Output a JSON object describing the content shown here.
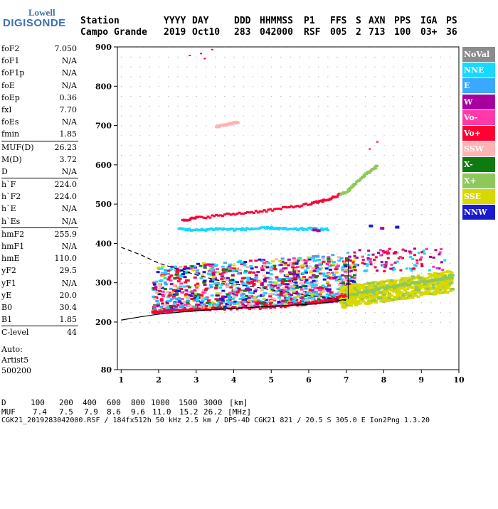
{
  "logo": {
    "line1": "Lowell",
    "line2": "DIGISONDE"
  },
  "header": {
    "row1": [
      "Station",
      "YYYY",
      "DAY",
      "DDD",
      "HHMMSS",
      "P1",
      "FFS",
      "S",
      "AXN",
      "PPS",
      "IGA",
      "PS"
    ],
    "row2": [
      "Campo Grande",
      "2019",
      "Oct10",
      "283",
      "042000",
      "RSF",
      "005",
      "2",
      "713",
      "100",
      "03+",
      "36"
    ]
  },
  "params": [
    [
      [
        "foF2",
        "7.050"
      ],
      [
        "foF1",
        "N/A"
      ],
      [
        "foF1p",
        "N/A"
      ],
      [
        "foE",
        "N/A"
      ],
      [
        "foEp",
        "0.36"
      ],
      [
        "fxI",
        "7.70"
      ],
      [
        "foEs",
        "N/A"
      ],
      [
        "fmin",
        "1.85"
      ]
    ],
    [
      [
        "MUF(D)",
        "26.23"
      ],
      [
        "M(D)",
        "3.72"
      ],
      [
        "D",
        "N/A"
      ]
    ],
    [
      [
        "h`F",
        "224.0"
      ],
      [
        "h`F2",
        "224.0"
      ],
      [
        "h`E",
        "N/A"
      ],
      [
        "h`Es",
        "N/A"
      ]
    ],
    [
      [
        "hmF2",
        "255.9"
      ],
      [
        "hmF1",
        "N/A"
      ],
      [
        "hmE",
        "110.0"
      ],
      [
        "yF2",
        "29.5"
      ],
      [
        "yF1",
        "N/A"
      ],
      [
        "yE",
        "20.0"
      ],
      [
        "B0",
        "30.4"
      ],
      [
        "B1",
        "1.85"
      ]
    ],
    [
      [
        "C-level",
        "44"
      ]
    ]
  ],
  "auto": {
    "line1": "Auto:",
    "line2": "Artist5",
    "line3": "500200"
  },
  "legend": [
    {
      "label": "NoVal",
      "color": "#8c8c8c"
    },
    {
      "label": "NNE",
      "color": "#17d8ff"
    },
    {
      "label": "E",
      "color": "#3aa8ff"
    },
    {
      "label": "W",
      "color": "#a8009e"
    },
    {
      "label": "Vo-",
      "color": "#ff3aa8"
    },
    {
      "label": "Vo+",
      "color": "#ff0033"
    },
    {
      "label": "SSW",
      "color": "#ffb3b3"
    },
    {
      "label": "X-",
      "color": "#0f7a0f"
    },
    {
      "label": "X+",
      "color": "#8fc85a"
    },
    {
      "label": "SSE",
      "color": "#d8d800"
    },
    {
      "label": "NNW",
      "color": "#1a1acc"
    }
  ],
  "bottom": {
    "d_label": "D",
    "d_values": [
      "100",
      "200",
      "400",
      "600",
      "800",
      "1000",
      "1500",
      "3000",
      "[km]"
    ],
    "muf_label": "MUF",
    "muf_values": [
      "7.4",
      "7.5",
      "7.9",
      "8.6",
      "9.6",
      "11.0",
      "15.2",
      "26.2",
      "[MHz]"
    ],
    "footer": "CGK21_2019283042000.RSF / 184fx512h 50 kHz 2.5 km / DPS-4D CGK21 821 / 20.5 S 305.0 E Ion2Png 1.3.20"
  },
  "chart_data": {
    "type": "scatter",
    "x_ticks": [
      "1",
      "2",
      "3",
      "4",
      "5",
      "6",
      "7",
      "8",
      "9",
      "10"
    ],
    "y_ticks": [
      "80",
      "200",
      "300",
      "400",
      "500",
      "600",
      "700",
      "800",
      "900"
    ],
    "xlim": [
      0.9,
      10.0
    ],
    "ylim": [
      80,
      900
    ],
    "grid": true,
    "legend_position": "right",
    "traces": [
      {
        "name": "F2 O-trace (Vo+)",
        "x": [
          1.8,
          2.5,
          3.0,
          4.0,
          5.0,
          6.0,
          6.5,
          7.0
        ],
        "y": [
          228,
          232,
          235,
          238,
          240,
          250,
          258,
          272
        ]
      },
      {
        "name": "F2 X-trace (X+)",
        "x": [
          7.0,
          7.5,
          8.0,
          8.5,
          9.0,
          9.5,
          9.8
        ],
        "y": [
          270,
          280,
          290,
          298,
          305,
          312,
          318
        ]
      },
      {
        "name": "F2 2nd hop (Vo+/X+)",
        "x": [
          2.6,
          3.0,
          4.0,
          5.0,
          6.0,
          6.5,
          7.0,
          7.2,
          7.5,
          7.8
        ],
        "y": [
          462,
          468,
          478,
          488,
          503,
          515,
          535,
          555,
          580,
          600
        ]
      },
      {
        "name": "NNE echoes",
        "x": [
          2.5,
          3.0,
          3.5,
          4.0,
          4.5,
          5.0,
          5.5,
          6.0,
          6.5
        ],
        "y": [
          440,
          436,
          440,
          438,
          440,
          442,
          438,
          440,
          438
        ]
      },
      {
        "name": "3rd hop (SSW)",
        "x": [
          3.5,
          3.8,
          4.1
        ],
        "y": [
          699,
          706,
          712
        ]
      }
    ],
    "model_profile": {
      "x": [
        1.0,
        1.5,
        2.0,
        3.0,
        4.0,
        5.0,
        6.0,
        6.5,
        7.0
      ],
      "y": [
        205,
        213,
        220,
        229,
        235,
        240,
        245,
        250,
        258
      ]
    },
    "model_upper": {
      "x": [
        1.0,
        1.5,
        2.0,
        2.5,
        3.0,
        3.5,
        4.0,
        4.5,
        5.0,
        5.5,
        6.0,
        6.5,
        7.0
      ],
      "y": [
        390,
        372,
        350,
        335,
        320,
        308,
        297,
        290,
        282,
        275,
        268,
        262,
        255
      ]
    }
  }
}
